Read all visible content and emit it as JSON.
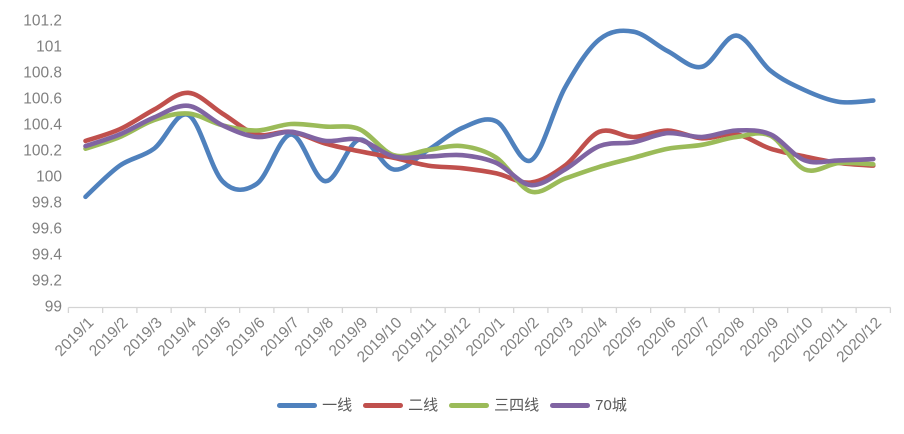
{
  "chart_data": {
    "type": "line",
    "title": "",
    "smooth": true,
    "grid": false,
    "legend_position": "bottom",
    "categories": [
      "2019/1",
      "2019/2",
      "2019/3",
      "2019/4",
      "2019/5",
      "2019/6",
      "2019/7",
      "2019/8",
      "2019/9",
      "2019/10",
      "2019/11",
      "2019/12",
      "2020/1",
      "2020/2",
      "2020/3",
      "2020/4",
      "2020/5",
      "2020/6",
      "2020/7",
      "2020/8",
      "2020/9",
      "2020/10",
      "2020/11",
      "2020/12"
    ],
    "series": [
      {
        "name": "一线",
        "color": "#4F81BD",
        "values": [
          99.84,
          100.08,
          100.21,
          100.47,
          99.96,
          99.94,
          100.32,
          99.96,
          100.28,
          100.05,
          100.2,
          100.37,
          100.42,
          100.12,
          100.68,
          101.05,
          101.11,
          100.96,
          100.84,
          101.08,
          100.81,
          100.66,
          100.57,
          100.58
        ]
      },
      {
        "name": "二线",
        "color": "#C0504D",
        "values": [
          100.27,
          100.36,
          100.51,
          100.64,
          100.48,
          100.32,
          100.34,
          100.25,
          100.19,
          100.14,
          100.08,
          100.06,
          100.02,
          99.95,
          100.08,
          100.34,
          100.3,
          100.35,
          100.29,
          100.32,
          100.21,
          100.15,
          100.1,
          100.08
        ]
      },
      {
        "name": "三四线",
        "color": "#9BBB59",
        "values": [
          100.21,
          100.3,
          100.43,
          100.48,
          100.39,
          100.35,
          100.4,
          100.38,
          100.36,
          100.16,
          100.2,
          100.23,
          100.14,
          99.88,
          99.98,
          100.07,
          100.14,
          100.21,
          100.24,
          100.3,
          100.31,
          100.05,
          100.1,
          100.09
        ]
      },
      {
        "name": "70城",
        "color": "#8064A2",
        "values": [
          100.23,
          100.32,
          100.45,
          100.54,
          100.39,
          100.3,
          100.34,
          100.27,
          100.28,
          100.15,
          100.15,
          100.16,
          100.1,
          99.93,
          100.05,
          100.23,
          100.26,
          100.33,
          100.3,
          100.35,
          100.32,
          100.12,
          100.12,
          100.13
        ]
      }
    ],
    "ylim": [
      99,
      101.2
    ],
    "ytick_step": 0.2,
    "ytick_labels": [
      "99",
      "99.2",
      "99.4",
      "99.6",
      "99.8",
      "100",
      "100.2",
      "100.4",
      "100.6",
      "100.8",
      "101",
      "101.2"
    ],
    "axis_color": "#d4d4d4",
    "tick_label_color": "#808080"
  }
}
